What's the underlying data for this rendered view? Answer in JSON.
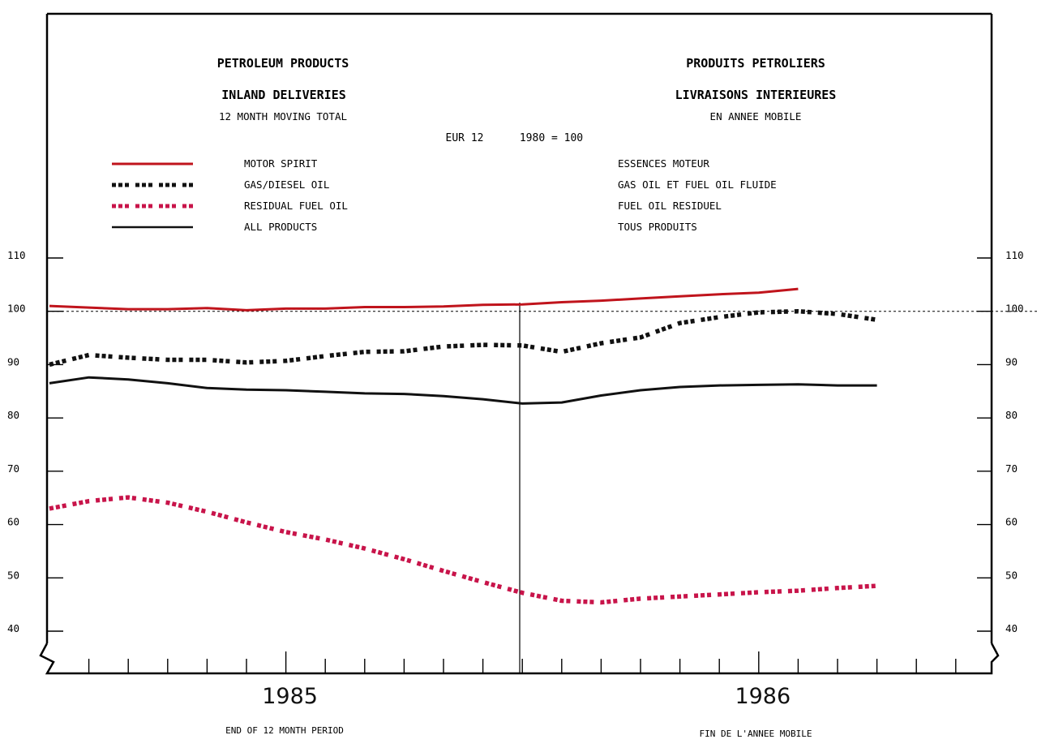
{
  "header": {
    "title_en_1": "PETROLEUM PRODUCTS",
    "title_en_2": "INLAND DELIVERIES",
    "subtitle_en": "12 MONTH MOVING TOTAL",
    "title_fr_1": "PRODUITS PETROLIERS",
    "title_fr_2": "LIVRAISONS INTERIEURES",
    "subtitle_fr": "EN ANNEE MOBILE",
    "base_label": "EUR 12",
    "base_year": "1980 = 100"
  },
  "legend": [
    {
      "en": "MOTOR SPIRIT",
      "fr": "ESSENCES MOTEUR"
    },
    {
      "en": "GAS/DIESEL OIL",
      "fr": "GAS OIL ET FUEL OIL FLUIDE"
    },
    {
      "en": "RESIDUAL FUEL OIL",
      "fr": "FUEL OIL RESIDUEL"
    },
    {
      "en": "ALL PRODUCTS",
      "fr": "TOUS PRODUITS"
    }
  ],
  "footer": {
    "xlabel_en": "END OF 12 MONTH PERIOD",
    "xlabel_fr": "FIN DE L'ANNEE MOBILE"
  },
  "colors": {
    "motor_spirit": "#c0141c",
    "gas_diesel": "#111111",
    "residual": "#c8144a",
    "all_products": "#111111",
    "axis": "#000000"
  },
  "chart_data": {
    "type": "line",
    "x_unit": "month",
    "x": [
      "1985-01",
      "1985-02",
      "1985-03",
      "1985-04",
      "1985-05",
      "1985-06",
      "1985-07",
      "1985-08",
      "1985-09",
      "1985-10",
      "1985-11",
      "1985-12",
      "1986-01",
      "1986-02",
      "1986-03",
      "1986-04",
      "1986-05",
      "1986-06",
      "1986-07",
      "1986-08",
      "1986-09",
      "1986-10"
    ],
    "x_tick_labels": [
      "1985",
      "1986"
    ],
    "y_ticks": [
      40,
      50,
      60,
      70,
      80,
      90,
      100,
      110
    ],
    "ylim": [
      33,
      116
    ],
    "reference_line": 100,
    "series": [
      {
        "name": "MOTOR SPIRIT",
        "style": "solid",
        "values": [
          101.0,
          100.7,
          100.4,
          100.4,
          100.6,
          100.2,
          100.5,
          100.5,
          100.8,
          100.8,
          100.9,
          101.2,
          101.3,
          101.7,
          102.0,
          102.4,
          102.8,
          103.2,
          103.5,
          104.2,
          null,
          null
        ]
      },
      {
        "name": "GAS/DIESEL OIL",
        "style": "dotted",
        "values": [
          90.0,
          91.8,
          91.3,
          90.9,
          90.9,
          90.4,
          90.7,
          91.6,
          92.4,
          92.5,
          93.4,
          93.7,
          93.6,
          92.4,
          94.0,
          95.1,
          97.8,
          98.9,
          99.8,
          100.0,
          99.5,
          98.4
        ]
      },
      {
        "name": "RESIDUAL FUEL OIL",
        "style": "dotted",
        "values": [
          63.0,
          64.4,
          65.1,
          64.1,
          62.4,
          60.4,
          58.6,
          57.2,
          55.5,
          53.5,
          51.3,
          49.2,
          47.2,
          45.7,
          45.4,
          46.1,
          46.5,
          46.9,
          47.3,
          47.6,
          48.1,
          48.5
        ]
      },
      {
        "name": "ALL PRODUCTS",
        "style": "solid",
        "values": [
          86.5,
          87.6,
          87.2,
          86.5,
          85.6,
          85.3,
          85.2,
          84.9,
          84.6,
          84.5,
          84.1,
          83.5,
          82.7,
          82.9,
          84.2,
          85.2,
          85.8,
          86.1,
          86.2,
          86.3,
          86.1,
          86.1
        ]
      }
    ]
  }
}
